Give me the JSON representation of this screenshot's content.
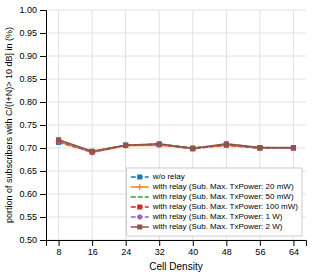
{
  "chart_data": {
    "type": "line",
    "x": [
      8,
      16,
      24,
      32,
      40,
      48,
      56,
      64
    ],
    "series": [
      {
        "name": "w/o relay",
        "values": [
          0.712,
          0.692,
          0.706,
          0.707,
          0.7,
          0.706,
          0.7,
          0.7
        ],
        "marker": "square",
        "line_style": "dashed"
      },
      {
        "name": "with relay (Sub. Max. TxPower: 20 mW)",
        "values": [
          0.714,
          0.69,
          0.705,
          0.706,
          0.7,
          0.706,
          0.7,
          0.7
        ],
        "marker": "plus",
        "line_style": "solid"
      },
      {
        "name": "with relay (Sub. Max. TxPower: 50 mW)",
        "values": [
          0.716,
          0.692,
          0.706,
          0.708,
          0.7,
          0.707,
          0.701,
          0.7
        ],
        "line_style": "dashed"
      },
      {
        "name": "with relay (Sub. Max. TxPower: 100 mW)",
        "values": [
          0.716,
          0.691,
          0.706,
          0.708,
          0.698,
          0.707,
          0.7,
          0.7
        ],
        "marker": "square",
        "line_style": "dashed"
      },
      {
        "name": "with relay (Sub. Max. TxPower: 1 W)",
        "values": [
          0.716,
          0.692,
          0.706,
          0.708,
          0.699,
          0.709,
          0.7,
          0.7
        ],
        "marker": "circle",
        "line_style": "dashed"
      },
      {
        "name": "with relay (Sub. Max. TxPower: 2 W)",
        "values": [
          0.718,
          0.693,
          0.706,
          0.709,
          0.699,
          0.709,
          0.701,
          0.701
        ],
        "marker": "square",
        "line_style": "solid"
      }
    ],
    "xlabel": "Cell Density",
    "ylabel": "portion of subscribers with C/(I+N)> 10 dB] in (%)",
    "xlim": [
      5,
      67
    ],
    "ylim": [
      0.5,
      1.0
    ],
    "xticks": [
      8,
      16,
      24,
      32,
      40,
      48,
      56,
      64
    ],
    "yticks": [
      {
        "value": 0.5,
        "label": "0.50"
      },
      0.55,
      {
        "value": 0.6,
        "label": "0.60"
      },
      0.65,
      {
        "value": 0.7,
        "label": "0.70"
      },
      0.75,
      {
        "value": 0.8,
        "label": "0.80"
      },
      0.85,
      {
        "value": 0.9,
        "label": "0.90"
      },
      0.95,
      {
        "value": 1.0,
        "label": "1.00"
      }
    ],
    "grid": true,
    "legend": "lower right"
  }
}
